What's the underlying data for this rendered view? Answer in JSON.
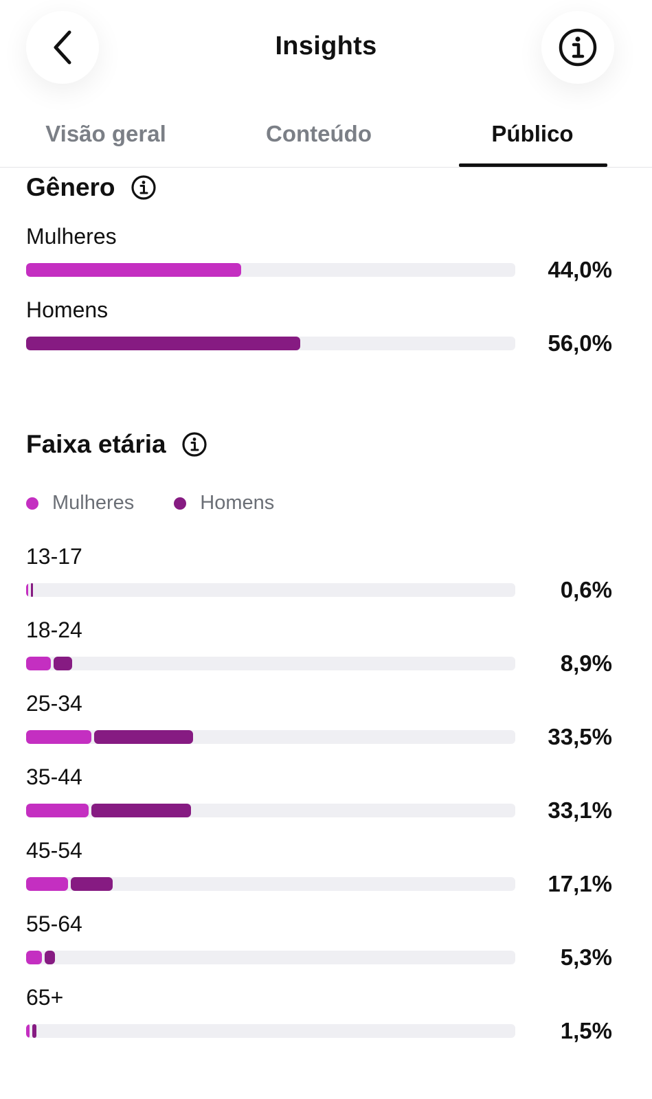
{
  "header": {
    "title": "Insights",
    "icons": {
      "back": "chevron-left-icon",
      "info": "info-circle-icon"
    }
  },
  "tabs": [
    {
      "label": "Visão geral",
      "active": false
    },
    {
      "label": "Conteúdo",
      "active": false
    },
    {
      "label": "Público",
      "active": true
    }
  ],
  "gender": {
    "title": "Gênero",
    "rows": [
      {
        "label": "Mulheres",
        "value_pct": 44.0,
        "value_text": "44,0%",
        "color": "#c42fc1"
      },
      {
        "label": "Homens",
        "value_pct": 56.0,
        "value_text": "56,0%",
        "color": "#861b82"
      }
    ]
  },
  "age": {
    "title": "Faixa etária",
    "legend": [
      {
        "label": "Mulheres",
        "color": "#c42fc1"
      },
      {
        "label": "Homens",
        "color": "#861b82"
      }
    ],
    "rows": [
      {
        "label": "13-17",
        "women_pct": 0.3,
        "men_pct": 0.3,
        "total_text": "0,6%"
      },
      {
        "label": "18-24",
        "women_pct": 5.0,
        "men_pct": 3.9,
        "total_text": "8,9%"
      },
      {
        "label": "25-34",
        "women_pct": 13.4,
        "men_pct": 20.1,
        "total_text": "33,5%"
      },
      {
        "label": "35-44",
        "women_pct": 12.8,
        "men_pct": 20.3,
        "total_text": "33,1%"
      },
      {
        "label": "45-54",
        "women_pct": 8.5,
        "men_pct": 8.6,
        "total_text": "17,1%"
      },
      {
        "label": "55-64",
        "women_pct": 3.3,
        "men_pct": 2.0,
        "total_text": "5,3%"
      },
      {
        "label": "65+",
        "women_pct": 0.7,
        "men_pct": 0.8,
        "total_text": "1,5%"
      }
    ],
    "scale_max_pct": 100
  },
  "colors": {
    "women": "#c42fc1",
    "men": "#861b82",
    "track": "#efeff3"
  }
}
